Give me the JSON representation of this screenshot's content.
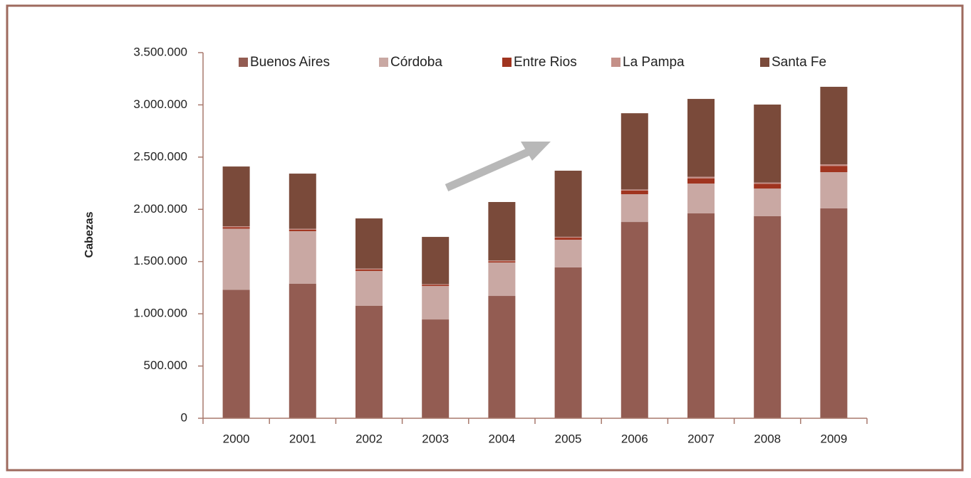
{
  "chart_data": {
    "type": "stacked_bar",
    "y_label": "Cabezas",
    "categories": [
      "2000",
      "2001",
      "2002",
      "2003",
      "2004",
      "2005",
      "2006",
      "2007",
      "2008",
      "2009"
    ],
    "series": [
      {
        "name": "Buenos Aires",
        "color": "#935c52",
        "values": [
          1230000,
          1287000,
          1076000,
          946000,
          1171000,
          1444000,
          1879000,
          1961000,
          1934000,
          2009000
        ]
      },
      {
        "name": "Córdoba",
        "color": "#c9a8a3",
        "values": [
          585000,
          504000,
          334000,
          320000,
          320000,
          265000,
          266000,
          286000,
          265000,
          347000
        ]
      },
      {
        "name": "Entre Rios",
        "color": "#a0341f",
        "values": [
          15000,
          15000,
          15000,
          12000,
          12000,
          20000,
          35000,
          50000,
          45000,
          60000
        ]
      },
      {
        "name": "La Pampa",
        "color": "#c49088",
        "values": [
          8000,
          8000,
          8000,
          6000,
          8000,
          8000,
          10000,
          15000,
          12000,
          15000
        ]
      },
      {
        "name": "Santa Fe",
        "color": "#7a4a3a",
        "values": [
          572000,
          528000,
          480000,
          452000,
          559000,
          633000,
          730000,
          745000,
          747000,
          742000
        ]
      }
    ],
    "ylim": [
      0,
      3500000
    ],
    "yticks": [
      0,
      {
        "value": 500000,
        "label": "500.000"
      },
      {
        "value": 1000000,
        "label": "1.000.000"
      },
      {
        "value": 1500000,
        "label": "1.500.000"
      },
      {
        "value": 2000000,
        "label": "2.000.000"
      },
      {
        "value": 2500000,
        "label": "2.500.000"
      },
      {
        "value": 3000000,
        "label": "3.000.000"
      },
      {
        "value": 3500000,
        "label": "3.500.000"
      }
    ],
    "legend": "top"
  }
}
